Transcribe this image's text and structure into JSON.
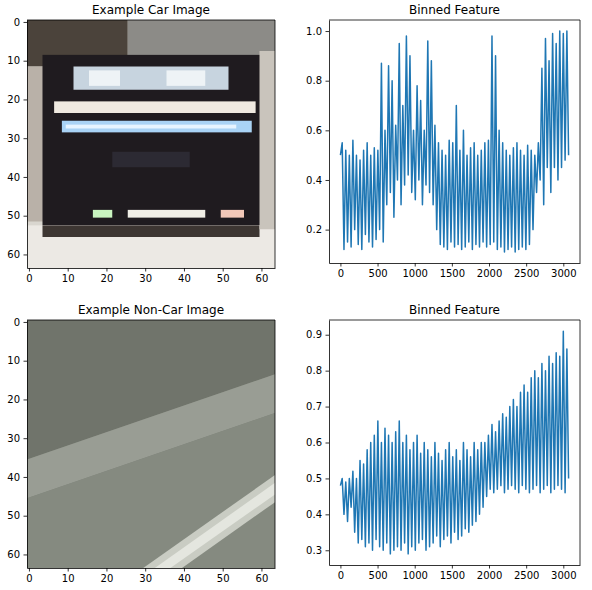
{
  "chart_data": [
    {
      "type": "image",
      "title": "Example Car Image",
      "xlim": [
        -0.5,
        63.5
      ],
      "ylim": [
        63.5,
        -0.5
      ],
      "xticks": [
        0,
        10,
        20,
        30,
        40,
        50,
        60
      ],
      "yticks": [
        0,
        10,
        20,
        30,
        40,
        50,
        60
      ]
    },
    {
      "type": "line",
      "title": "Binned Feature",
      "color": "#1f77b4",
      "x": [
        0,
        24,
        48,
        72,
        96,
        120,
        144,
        168,
        192,
        216,
        240,
        264,
        288,
        312,
        336,
        360,
        384,
        408,
        432,
        456,
        480,
        504,
        528,
        552,
        576,
        600,
        624,
        648,
        672,
        696,
        720,
        744,
        768,
        792,
        816,
        840,
        864,
        888,
        912,
        936,
        960,
        984,
        1008,
        1032,
        1056,
        1080,
        1104,
        1128,
        1152,
        1176,
        1200,
        1224,
        1248,
        1272,
        1296,
        1320,
        1344,
        1368,
        1392,
        1416,
        1440,
        1464,
        1488,
        1512,
        1536,
        1560,
        1584,
        1608,
        1632,
        1656,
        1680,
        1704,
        1728,
        1752,
        1776,
        1800,
        1824,
        1848,
        1872,
        1896,
        1920,
        1944,
        1968,
        1992,
        2016,
        2040,
        2064,
        2088,
        2112,
        2136,
        2160,
        2184,
        2208,
        2232,
        2256,
        2280,
        2304,
        2328,
        2352,
        2376,
        2400,
        2424,
        2448,
        2472,
        2496,
        2520,
        2544,
        2568,
        2592,
        2616,
        2640,
        2664,
        2688,
        2712,
        2736,
        2760,
        2784,
        2808,
        2832,
        2856,
        2880,
        2904,
        2928,
        2952,
        2976,
        3000,
        3024,
        3048,
        3071
      ],
      "values": [
        0.5,
        0.55,
        0.12,
        0.52,
        0.15,
        0.5,
        0.13,
        0.56,
        0.2,
        0.5,
        0.14,
        0.48,
        0.12,
        0.52,
        0.18,
        0.55,
        0.15,
        0.5,
        0.13,
        0.53,
        0.16,
        0.52,
        0.2,
        0.87,
        0.15,
        0.6,
        0.3,
        0.86,
        0.35,
        0.8,
        0.25,
        0.62,
        0.4,
        0.95,
        0.3,
        0.7,
        0.38,
        0.98,
        0.42,
        0.9,
        0.35,
        0.6,
        0.32,
        0.78,
        0.4,
        0.72,
        0.3,
        0.6,
        0.38,
        0.96,
        0.35,
        0.88,
        0.3,
        0.62,
        0.2,
        0.55,
        0.14,
        0.52,
        0.13,
        0.5,
        0.12,
        0.56,
        0.15,
        0.55,
        0.13,
        0.7,
        0.14,
        0.52,
        0.12,
        0.6,
        0.13,
        0.5,
        0.15,
        0.53,
        0.12,
        0.55,
        0.14,
        0.5,
        0.13,
        0.52,
        0.15,
        0.55,
        0.13,
        0.56,
        0.14,
        0.98,
        0.15,
        0.9,
        0.12,
        0.6,
        0.13,
        0.55,
        0.11,
        0.52,
        0.12,
        0.5,
        0.13,
        0.53,
        0.11,
        0.55,
        0.12,
        0.52,
        0.13,
        0.5,
        0.12,
        0.54,
        0.14,
        0.52,
        0.2,
        0.5,
        0.35,
        0.55,
        0.4,
        0.85,
        0.3,
        0.97,
        0.45,
        0.88,
        0.35,
        0.99,
        0.45,
        0.95,
        0.4,
        1.0,
        0.45,
        0.99,
        0.48,
        1.0,
        0.5
      ],
      "xlim": [
        -153.6,
        3224.6
      ],
      "ylim": [
        0.0655,
        1.0445
      ],
      "xticks": [
        0,
        500,
        1000,
        1500,
        2000,
        2500,
        3000
      ],
      "yticks": [
        0.2,
        0.4,
        0.6,
        0.8,
        {
          "value": 1,
          "label": "1.0"
        }
      ]
    },
    {
      "type": "image",
      "title": "Example Non-Car Image",
      "xlim": [
        -0.5,
        63.5
      ],
      "ylim": [
        63.5,
        -0.5
      ],
      "xticks": [
        0,
        10,
        20,
        30,
        40,
        50,
        60
      ],
      "yticks": [
        0,
        10,
        20,
        30,
        40,
        50,
        60
      ]
    },
    {
      "type": "line",
      "title": "Binned Feature",
      "color": "#1f77b4",
      "x": [
        0,
        24,
        48,
        72,
        96,
        120,
        144,
        168,
        192,
        216,
        240,
        264,
        288,
        312,
        336,
        360,
        384,
        408,
        432,
        456,
        480,
        504,
        528,
        552,
        576,
        600,
        624,
        648,
        672,
        696,
        720,
        744,
        768,
        792,
        816,
        840,
        864,
        888,
        912,
        936,
        960,
        984,
        1008,
        1032,
        1056,
        1080,
        1104,
        1128,
        1152,
        1176,
        1200,
        1224,
        1248,
        1272,
        1296,
        1320,
        1344,
        1368,
        1392,
        1416,
        1440,
        1464,
        1488,
        1512,
        1536,
        1560,
        1584,
        1608,
        1632,
        1656,
        1680,
        1704,
        1728,
        1752,
        1776,
        1800,
        1824,
        1848,
        1872,
        1896,
        1920,
        1944,
        1968,
        1992,
        2016,
        2040,
        2064,
        2088,
        2112,
        2136,
        2160,
        2184,
        2208,
        2232,
        2256,
        2280,
        2304,
        2328,
        2352,
        2376,
        2400,
        2424,
        2448,
        2472,
        2496,
        2520,
        2544,
        2568,
        2592,
        2616,
        2640,
        2664,
        2688,
        2712,
        2736,
        2760,
        2784,
        2808,
        2832,
        2856,
        2880,
        2904,
        2928,
        2952,
        2976,
        3000,
        3024,
        3048,
        3071
      ],
      "values": [
        0.48,
        0.5,
        0.4,
        0.49,
        0.38,
        0.5,
        0.42,
        0.52,
        0.35,
        0.5,
        0.32,
        0.55,
        0.33,
        0.54,
        0.31,
        0.58,
        0.32,
        0.6,
        0.3,
        0.62,
        0.33,
        0.66,
        0.31,
        0.6,
        0.3,
        0.64,
        0.32,
        0.62,
        0.29,
        0.6,
        0.3,
        0.63,
        0.31,
        0.66,
        0.3,
        0.6,
        0.32,
        0.62,
        0.29,
        0.58,
        0.31,
        0.6,
        0.3,
        0.62,
        0.32,
        0.57,
        0.33,
        0.6,
        0.3,
        0.58,
        0.31,
        0.56,
        0.32,
        0.6,
        0.34,
        0.57,
        0.31,
        0.55,
        0.33,
        0.58,
        0.34,
        0.6,
        0.32,
        0.56,
        0.35,
        0.58,
        0.33,
        0.55,
        0.34,
        0.6,
        0.36,
        0.58,
        0.35,
        0.56,
        0.37,
        0.6,
        0.38,
        0.58,
        0.4,
        0.6,
        0.42,
        0.6,
        0.45,
        0.62,
        0.47,
        0.65,
        0.46,
        0.63,
        0.47,
        0.66,
        0.48,
        0.68,
        0.46,
        0.67,
        0.47,
        0.7,
        0.48,
        0.72,
        0.47,
        0.7,
        0.46,
        0.74,
        0.48,
        0.76,
        0.47,
        0.74,
        0.46,
        0.78,
        0.47,
        0.8,
        0.48,
        0.78,
        0.46,
        0.82,
        0.47,
        0.8,
        0.48,
        0.84,
        0.46,
        0.82,
        0.47,
        0.85,
        0.48,
        0.84,
        0.47,
        0.91,
        0.46,
        0.86,
        0.5
      ],
      "xlim": [
        -153.6,
        3224.6
      ],
      "ylim": [
        0.259,
        0.941
      ],
      "xticks": [
        0,
        500,
        1000,
        1500,
        2000,
        2500,
        3000
      ],
      "yticks": [
        0.3,
        0.4,
        0.5,
        0.6,
        0.7,
        0.8,
        0.9
      ]
    }
  ]
}
